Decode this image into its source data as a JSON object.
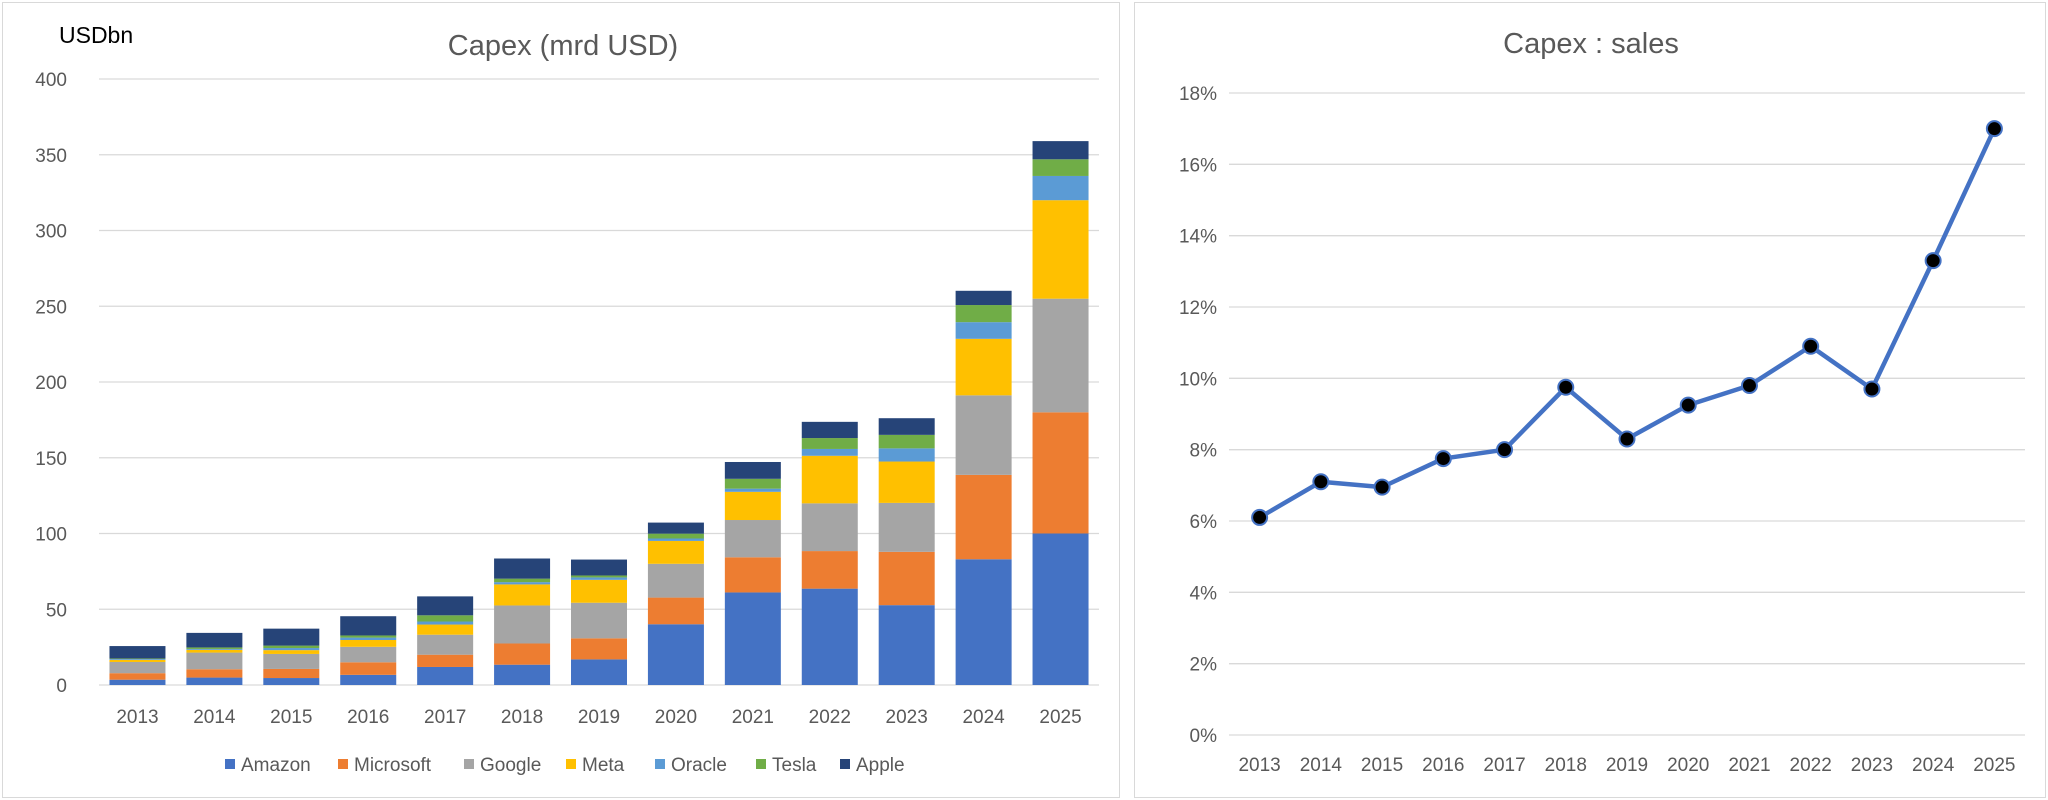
{
  "chart_data": [
    {
      "type": "bar",
      "stacked": true,
      "title": "Capex (mrd USD)",
      "unit_label": "USDbn",
      "ylim": [
        0,
        400
      ],
      "yticks": [
        "0",
        "50",
        "100",
        "150",
        "200",
        "250",
        "300",
        "350",
        "400"
      ],
      "ytick_values": [
        0,
        50,
        100,
        150,
        200,
        250,
        300,
        350,
        400
      ],
      "categories": [
        "2013",
        "2014",
        "2015",
        "2016",
        "2017",
        "2018",
        "2019",
        "2020",
        "2021",
        "2022",
        "2023",
        "2024",
        "2025"
      ],
      "grid": true,
      "legend_position": "bottom",
      "series": [
        {
          "name": "Amazon",
          "color": "#4472c4",
          "values": [
            3.5,
            4.9,
            4.6,
            6.7,
            11.9,
            13.4,
            16.9,
            40.1,
            61.1,
            63.6,
            52.7,
            83.0,
            100.0
          ]
        },
        {
          "name": "Microsoft",
          "color": "#ed7d31",
          "values": [
            4.3,
            5.5,
            6.0,
            8.3,
            8.1,
            14.0,
            13.9,
            17.6,
            23.2,
            24.8,
            35.2,
            55.7,
            80.0
          ]
        },
        {
          "name": "Google",
          "color": "#a5a5a5",
          "values": [
            7.4,
            11.0,
            9.9,
            10.2,
            13.2,
            25.1,
            23.5,
            22.3,
            24.6,
            31.5,
            32.3,
            52.5,
            75.0
          ]
        },
        {
          "name": "Meta",
          "color": "#ffc000",
          "values": [
            1.4,
            1.8,
            2.5,
            4.5,
            6.7,
            13.9,
            15.1,
            15.1,
            18.6,
            31.4,
            27.3,
            37.3,
            65.0
          ]
        },
        {
          "name": "Oracle",
          "color": "#5b9bd5",
          "values": [
            0.6,
            0.6,
            1.4,
            1.6,
            2.0,
            1.5,
            1.6,
            1.6,
            2.1,
            4.5,
            8.7,
            11.0,
            16.0
          ]
        },
        {
          "name": "Tesla",
          "color": "#70ad47",
          "values": [
            0.3,
            1.0,
            1.6,
            1.4,
            4.1,
            2.3,
            1.3,
            3.2,
            6.5,
            7.2,
            8.9,
            11.3,
            11.0
          ]
        },
        {
          "name": "Apple",
          "color": "#264478",
          "values": [
            8.2,
            9.6,
            11.2,
            12.7,
            12.5,
            13.3,
            10.5,
            7.3,
            11.1,
            10.7,
            11.0,
            9.4,
            12.0
          ]
        }
      ]
    },
    {
      "type": "line",
      "title": "Capex : sales",
      "ylim": [
        0,
        18
      ],
      "yticks": [
        "0%",
        "2%",
        "4%",
        "6%",
        "8%",
        "10%",
        "12%",
        "14%",
        "16%",
        "18%"
      ],
      "ytick_values": [
        0,
        2,
        4,
        6,
        8,
        10,
        12,
        14,
        16,
        18
      ],
      "categories": [
        "2013",
        "2014",
        "2015",
        "2016",
        "2017",
        "2018",
        "2019",
        "2020",
        "2021",
        "2022",
        "2023",
        "2024",
        "2025"
      ],
      "grid": true,
      "series": [
        {
          "line_color": "#4472c4",
          "marker_color": "#000000",
          "values": [
            6.1,
            7.1,
            6.95,
            7.75,
            8.0,
            9.75,
            8.3,
            9.25,
            9.8,
            10.9,
            9.7,
            13.3,
            17.0
          ]
        }
      ]
    }
  ]
}
